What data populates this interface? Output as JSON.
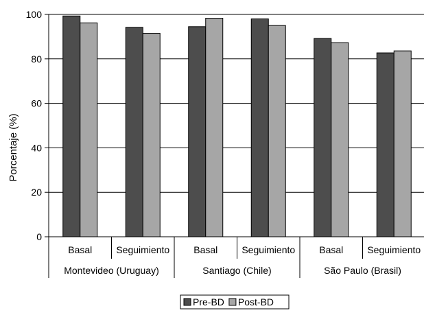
{
  "chart_data": {
    "type": "bar",
    "title": "",
    "ylabel": "Porcentaje (%)",
    "ylim": [
      0,
      100
    ],
    "yticks": [
      0,
      20,
      40,
      60,
      80,
      100
    ],
    "grid": true,
    "legend_position": "bottom",
    "groups": [
      {
        "label": "Montevideo (Uruguay)",
        "categories": [
          "Basal",
          "Seguimiento"
        ]
      },
      {
        "label": "Santiago (Chile)",
        "categories": [
          "Basal",
          "Seguimiento"
        ]
      },
      {
        "label": "São Paulo (Brasil)",
        "categories": [
          "Basal",
          "Seguimiento"
        ]
      }
    ],
    "categories": [
      "Basal",
      "Seguimiento",
      "Basal",
      "Seguimiento",
      "Basal",
      "Seguimiento"
    ],
    "series": [
      {
        "name": "Pre-BD",
        "color": "#4d4d4d",
        "values": [
          99.3,
          94.2,
          94.5,
          98.0,
          89.2,
          82.7
        ]
      },
      {
        "name": "Post-BD",
        "color": "#a6a6a6",
        "values": [
          96.2,
          91.5,
          98.3,
          95.0,
          87.3,
          83.6
        ]
      }
    ]
  }
}
